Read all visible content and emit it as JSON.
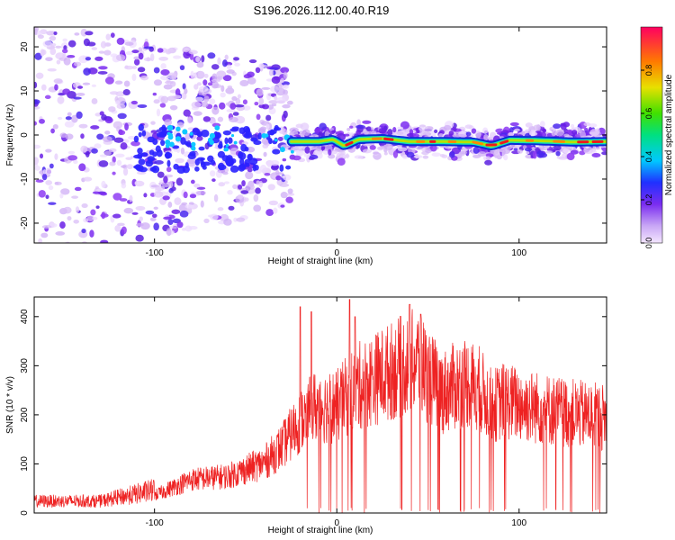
{
  "page": {
    "title": "S196.2026.112.00.40.R19"
  },
  "chart_data": [
    {
      "type": "heatmap",
      "title": "S196.2026.112.00.40.R19",
      "xlabel": "Height of straight line (km)",
      "ylabel": "Frequency (Hz)",
      "xlim": [
        -166,
        148
      ],
      "ylim": [
        -24.5,
        24.5
      ],
      "x_ticks": [
        -100,
        0,
        100
      ],
      "x_tick_labels": [
        "-100",
        "0",
        "100"
      ],
      "y_ticks": [
        -20,
        -10,
        0,
        10,
        20
      ],
      "y_tick_labels": [
        "-20",
        "-10",
        "0",
        "10",
        "20"
      ],
      "ridge": [
        {
          "x": -25,
          "f": -1.5
        },
        {
          "x": -10,
          "f": -1.5
        },
        {
          "x": -2,
          "f": -1.0
        },
        {
          "x": 4,
          "f": -2.5
        },
        {
          "x": 12,
          "f": -1.0
        },
        {
          "x": 25,
          "f": -0.8
        },
        {
          "x": 40,
          "f": -1.5
        },
        {
          "x": 60,
          "f": -1.5
        },
        {
          "x": 75,
          "f": -1.6
        },
        {
          "x": 85,
          "f": -2.5
        },
        {
          "x": 95,
          "f": -1.2
        },
        {
          "x": 110,
          "f": -1.3
        },
        {
          "x": 130,
          "f": -1.6
        },
        {
          "x": 148,
          "f": -1.5
        }
      ],
      "colorbar": {
        "label": "Normalized spectral amplitude",
        "ticks": [
          0.0,
          0.2,
          0.4,
          0.6,
          0.8
        ],
        "tick_labels": [
          "0.0",
          "0.2",
          "0.4",
          "0.6",
          "0.8"
        ],
        "range": [
          0,
          1
        ]
      }
    },
    {
      "type": "line",
      "xlabel": "Height of straight line (km)",
      "ylabel": "SNR (10 * v/v)",
      "xlim": [
        -166,
        148
      ],
      "ylim": [
        0,
        440
      ],
      "x_ticks": [
        -100,
        0,
        100
      ],
      "x_tick_labels": [
        "-100",
        "0",
        "100"
      ],
      "y_ticks": [
        0,
        100,
        200,
        300,
        400
      ],
      "y_tick_labels": [
        "0",
        "100",
        "200",
        "300",
        "400"
      ],
      "series": [
        {
          "name": "SNR",
          "color": "#ee2222",
          "envelope": [
            {
              "x": -166,
              "y": 22
            },
            {
              "x": -130,
              "y": 22
            },
            {
              "x": -100,
              "y": 42
            },
            {
              "x": -80,
              "y": 80
            },
            {
              "x": -60,
              "y": 88
            },
            {
              "x": -40,
              "y": 120
            },
            {
              "x": -30,
              "y": 160
            },
            {
              "x": -20,
              "y": 220
            },
            {
              "x": -12,
              "y": 255
            },
            {
              "x": 0,
              "y": 255
            },
            {
              "x": 10,
              "y": 300
            },
            {
              "x": 20,
              "y": 320
            },
            {
              "x": 30,
              "y": 340
            },
            {
              "x": 40,
              "y": 360
            },
            {
              "x": 45,
              "y": 365
            },
            {
              "x": 50,
              "y": 330
            },
            {
              "x": 58,
              "y": 290
            },
            {
              "x": 70,
              "y": 315
            },
            {
              "x": 78,
              "y": 300
            },
            {
              "x": 85,
              "y": 255
            },
            {
              "x": 92,
              "y": 270
            },
            {
              "x": 100,
              "y": 260
            },
            {
              "x": 120,
              "y": 245
            },
            {
              "x": 135,
              "y": 235
            },
            {
              "x": 148,
              "y": 230
            }
          ],
          "spikes": [
            {
              "x": -20,
              "y": 420
            },
            {
              "x": -14,
              "y": 410
            },
            {
              "x": 7,
              "y": 435
            },
            {
              "x": 10,
              "y": 400
            },
            {
              "x": 40,
              "y": 425
            },
            {
              "x": 46,
              "y": 405
            }
          ],
          "dropouts_range": [
            -18,
            148
          ]
        }
      ]
    }
  ]
}
